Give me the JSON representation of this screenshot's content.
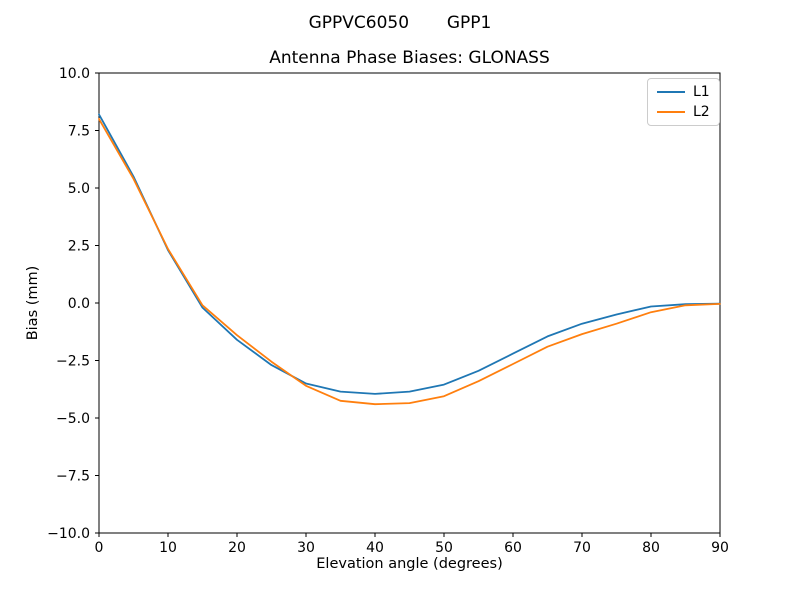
{
  "figure": {
    "suptitle": "GPPVC6050       GPP1",
    "background": "#ffffff"
  },
  "chart_data": {
    "type": "line",
    "title": "Antenna Phase Biases: GLONASS",
    "xlabel": "Elevation angle (degrees)",
    "ylabel": "Bias (mm)",
    "xlim": [
      0,
      90
    ],
    "ylim": [
      -10,
      10
    ],
    "grid": false,
    "x_ticks": [
      0,
      10,
      20,
      30,
      40,
      50,
      60,
      70,
      80,
      90
    ],
    "x_tick_labels": [
      "0",
      "10",
      "20",
      "30",
      "40",
      "50",
      "60",
      "70",
      "80",
      "90"
    ],
    "y_ticks": [
      -10,
      -7.5,
      -5,
      -2.5,
      0,
      2.5,
      5,
      7.5,
      10
    ],
    "y_tick_labels": [
      "−10.0",
      "−7.5",
      "−5.0",
      "−2.5",
      "0.0",
      "2.5",
      "5.0",
      "7.5",
      "10.0"
    ],
    "legend": {
      "position": "upper right"
    },
    "x": [
      0,
      5,
      10,
      15,
      20,
      25,
      30,
      35,
      40,
      45,
      50,
      55,
      60,
      65,
      70,
      75,
      80,
      85,
      90
    ],
    "series": [
      {
        "name": "L1",
        "color": "#1f77b4",
        "values": [
          8.2,
          5.5,
          2.3,
          -0.2,
          -1.6,
          -2.7,
          -3.5,
          -3.85,
          -3.95,
          -3.85,
          -3.55,
          -2.95,
          -2.2,
          -1.45,
          -0.9,
          -0.5,
          -0.15,
          -0.05,
          -0.03
        ]
      },
      {
        "name": "L2",
        "color": "#ff7f0e",
        "values": [
          8.0,
          5.4,
          2.35,
          -0.1,
          -1.4,
          -2.55,
          -3.6,
          -4.25,
          -4.4,
          -4.35,
          -4.05,
          -3.4,
          -2.65,
          -1.9,
          -1.35,
          -0.9,
          -0.4,
          -0.1,
          -0.04
        ]
      }
    ]
  }
}
